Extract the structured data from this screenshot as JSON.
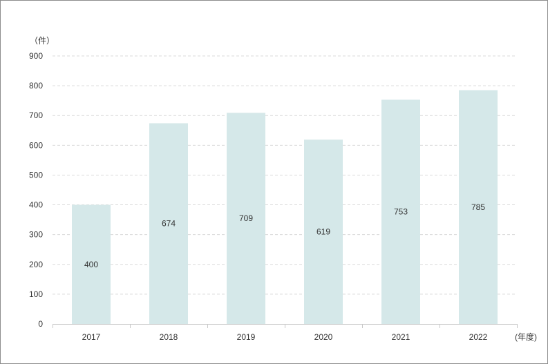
{
  "chart_data": {
    "type": "bar",
    "categories": [
      "2017",
      "2018",
      "2019",
      "2020",
      "2021",
      "2022"
    ],
    "values": [
      400,
      674,
      709,
      619,
      753,
      785
    ],
    "data_labels": [
      "400",
      "674",
      "709",
      "619",
      "753",
      "785"
    ],
    "y_unit": "（件）",
    "x_unit": "(年度)",
    "ylim": [
      0,
      900
    ],
    "y_ticks": [
      "0",
      "100",
      "200",
      "300",
      "400",
      "500",
      "600",
      "700",
      "800",
      "900"
    ],
    "grid": true,
    "bar_color": "#d5e8e9",
    "label_color": "#333333"
  }
}
